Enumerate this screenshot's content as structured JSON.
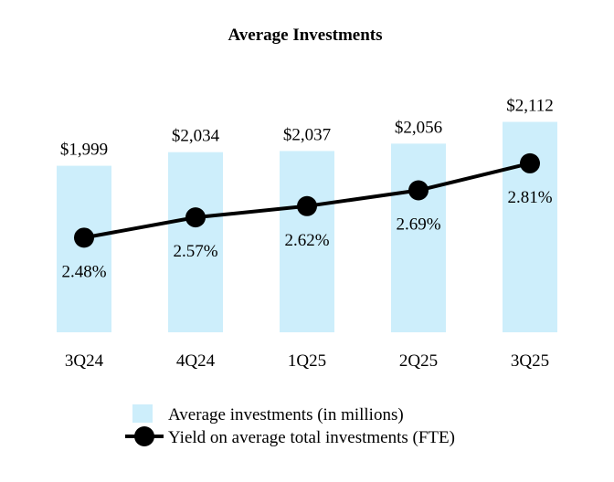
{
  "chart_data": {
    "type": "bar",
    "title": "Average Investments",
    "categories": [
      "3Q24",
      "4Q24",
      "1Q25",
      "2Q25",
      "3Q25"
    ],
    "series": [
      {
        "name": "Average investments (in millions)",
        "kind": "bar",
        "values": [
          1999,
          2034,
          2037,
          2056,
          2112
        ],
        "labels": [
          "$1,999",
          "$2,034",
          "$2,037",
          "$2,056",
          "$2,112"
        ],
        "color": "#cdeefb"
      },
      {
        "name": "Yield on average total investments (FTE)",
        "kind": "line",
        "values": [
          2.48,
          2.57,
          2.62,
          2.69,
          2.81
        ],
        "labels": [
          "2.48%",
          "2.57%",
          "2.62%",
          "2.69%",
          "2.81%"
        ],
        "color": "#000000"
      }
    ],
    "bar_axis_range": [
      1570,
      2125
    ],
    "line_axis_range": [
      2.06,
      3.15
    ],
    "legend_position": "bottom-center",
    "grid": false
  }
}
